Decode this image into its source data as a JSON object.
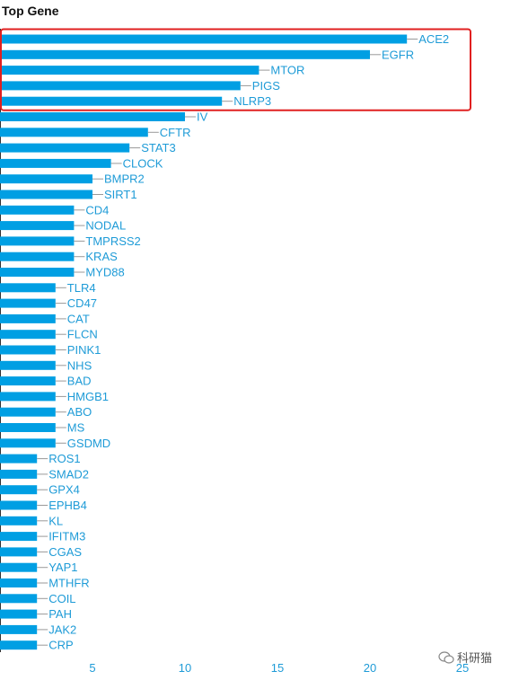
{
  "chart_data": {
    "type": "bar",
    "orientation": "horizontal",
    "title": "Top Gene",
    "xlabel": "",
    "ylabel": "",
    "categories": [
      "ACE2",
      "EGFR",
      "MTOR",
      "PIGS",
      "NLRP3",
      "IV",
      "CFTR",
      "STAT3",
      "CLOCK",
      "BMPR2",
      "SIRT1",
      "CD4",
      "NODAL",
      "TMPRSS2",
      "KRAS",
      "MYD88",
      "TLR4",
      "CD47",
      "CAT",
      "FLCN",
      "PINK1",
      "NHS",
      "BAD",
      "HMGB1",
      "ABO",
      "MS",
      "GSDMD",
      "ROS1",
      "SMAD2",
      "GPX4",
      "EPHB4",
      "KL",
      "IFITM3",
      "CGAS",
      "YAP1",
      "MTHFR",
      "COIL",
      "PAH",
      "JAK2",
      "CRP"
    ],
    "values": [
      22,
      20,
      14,
      13,
      12,
      10,
      8,
      7,
      6,
      5,
      5,
      4,
      4,
      4,
      4,
      4,
      3,
      3,
      3,
      3,
      3,
      3,
      3,
      3,
      3,
      3,
      3,
      2,
      2,
      2,
      2,
      2,
      2,
      2,
      2,
      2,
      2,
      2,
      2,
      2
    ],
    "xticks": [
      5,
      10,
      15,
      20,
      25
    ],
    "xlim": [
      0,
      25
    ],
    "grid": false,
    "highlight": {
      "from": 0,
      "to": 4,
      "color": "#e02020"
    },
    "bar_color": "#009fe3",
    "label_color": "#1e9bd7"
  },
  "watermark": {
    "text": "科研猫",
    "icon": "wechat-icon"
  }
}
